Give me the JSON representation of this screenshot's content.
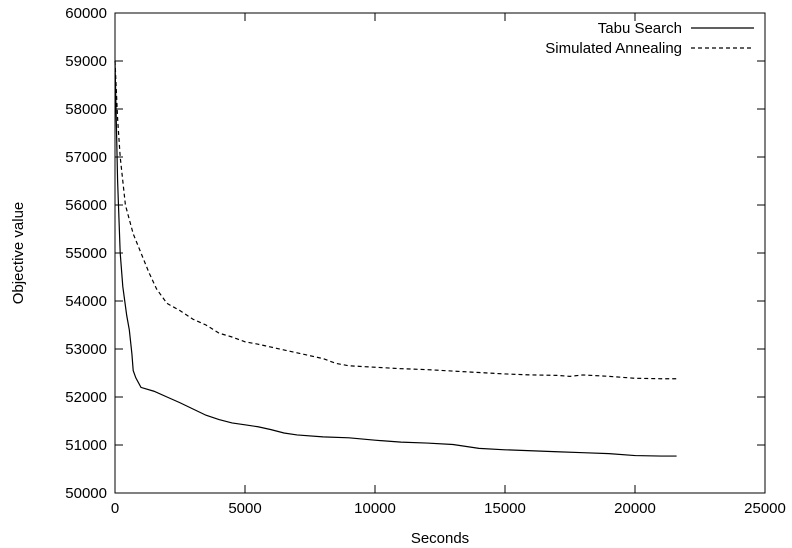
{
  "chart_data": {
    "type": "line",
    "title": "",
    "xlabel": "Seconds",
    "ylabel": "Objective value",
    "xlim": [
      0,
      25000
    ],
    "ylim": [
      50000,
      60000
    ],
    "xticks": [
      0,
      5000,
      10000,
      15000,
      20000,
      25000
    ],
    "yticks": [
      50000,
      51000,
      52000,
      53000,
      54000,
      55000,
      56000,
      57000,
      58000,
      59000,
      60000
    ],
    "grid": false,
    "legend_position": "top-right",
    "series": [
      {
        "name": "Tabu Search",
        "style": "solid",
        "color": "#000000",
        "points": [
          [
            0,
            59000
          ],
          [
            100,
            56500
          ],
          [
            200,
            55000
          ],
          [
            300,
            54300
          ],
          [
            450,
            53700
          ],
          [
            550,
            53400
          ],
          [
            650,
            52900
          ],
          [
            700,
            52550
          ],
          [
            800,
            52400
          ],
          [
            1000,
            52200
          ],
          [
            1500,
            52120
          ],
          [
            2000,
            52000
          ],
          [
            2500,
            51880
          ],
          [
            3000,
            51750
          ],
          [
            3500,
            51620
          ],
          [
            4000,
            51530
          ],
          [
            4500,
            51460
          ],
          [
            5000,
            51420
          ],
          [
            5500,
            51380
          ],
          [
            6000,
            51320
          ],
          [
            6500,
            51250
          ],
          [
            7000,
            51210
          ],
          [
            8000,
            51170
          ],
          [
            9000,
            51150
          ],
          [
            10000,
            51100
          ],
          [
            11000,
            51060
          ],
          [
            12000,
            51040
          ],
          [
            13000,
            51010
          ],
          [
            14000,
            50930
          ],
          [
            15000,
            50900
          ],
          [
            16000,
            50880
          ],
          [
            17000,
            50860
          ],
          [
            18000,
            50840
          ],
          [
            19000,
            50820
          ],
          [
            20000,
            50780
          ],
          [
            21000,
            50770
          ],
          [
            21600,
            50770
          ]
        ]
      },
      {
        "name": "Simulated Annealing",
        "style": "dashed",
        "color": "#000000",
        "points": [
          [
            0,
            59000
          ],
          [
            100,
            57800
          ],
          [
            200,
            57000
          ],
          [
            300,
            56500
          ],
          [
            400,
            56000
          ],
          [
            500,
            55800
          ],
          [
            700,
            55400
          ],
          [
            1000,
            55000
          ],
          [
            1300,
            54600
          ],
          [
            1600,
            54250
          ],
          [
            2000,
            53950
          ],
          [
            2500,
            53800
          ],
          [
            3000,
            53620
          ],
          [
            3500,
            53500
          ],
          [
            4000,
            53330
          ],
          [
            4500,
            53250
          ],
          [
            5000,
            53150
          ],
          [
            5500,
            53100
          ],
          [
            6000,
            53040
          ],
          [
            7000,
            52920
          ],
          [
            8000,
            52800
          ],
          [
            8500,
            52700
          ],
          [
            9000,
            52650
          ],
          [
            10000,
            52620
          ],
          [
            11000,
            52590
          ],
          [
            12000,
            52570
          ],
          [
            13000,
            52540
          ],
          [
            14000,
            52510
          ],
          [
            15000,
            52480
          ],
          [
            16000,
            52460
          ],
          [
            17000,
            52450
          ],
          [
            17500,
            52430
          ],
          [
            18000,
            52460
          ],
          [
            19000,
            52430
          ],
          [
            20000,
            52390
          ],
          [
            21000,
            52380
          ],
          [
            21600,
            52380
          ]
        ]
      }
    ]
  }
}
